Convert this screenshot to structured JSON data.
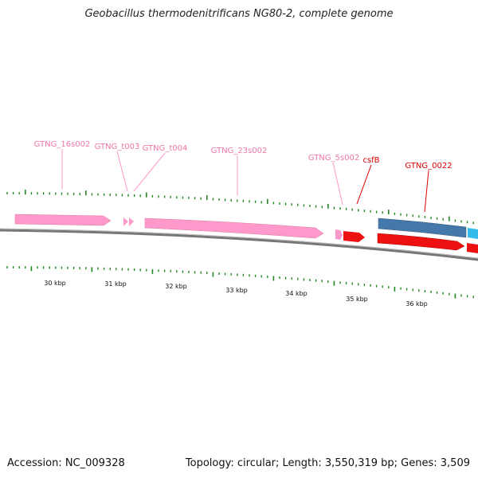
{
  "title": "Geobacillus thermodenitrificans NG80-2, complete genome",
  "footer": {
    "accession": "Accession: NC_009328",
    "summary": "Topology: circular; Length: 3,550,319 bp; Genes: 3,509"
  },
  "colors": {
    "rna": "#ff99cc",
    "rna_label": "#ee77aa",
    "cds_red": "#ee1111",
    "cds_label": "#dd0000",
    "blue": "#4477aa",
    "cyan": "#33bbee",
    "tick": "#228822",
    "backbone": "#777777"
  },
  "gene_labels": [
    {
      "id": "g1",
      "text": "GTNG_16s002",
      "type": "rna"
    },
    {
      "id": "g2",
      "text": "GTNG_t003",
      "type": "rna"
    },
    {
      "id": "g3",
      "text": "GTNG_t004",
      "type": "rna"
    },
    {
      "id": "g4",
      "text": "GTNG_23s002",
      "type": "rna"
    },
    {
      "id": "g5",
      "text": "GTNG_5s002",
      "type": "rna"
    },
    {
      "id": "g6",
      "text": "csfB",
      "type": "cds"
    },
    {
      "id": "g7",
      "text": "GTNG_0022",
      "type": "cds"
    }
  ],
  "scale_labels": [
    "30 kbp",
    "31 kbp",
    "32 kbp",
    "33 kbp",
    "34 kbp",
    "35 kbp",
    "36 kbp"
  ]
}
